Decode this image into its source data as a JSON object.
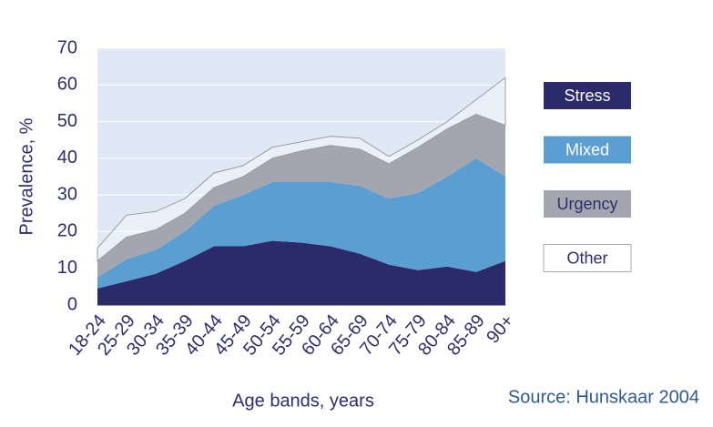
{
  "chart_data": {
    "type": "stacked_area",
    "categories": [
      "18-24",
      "25-29",
      "30-34",
      "35-39",
      "40-44",
      "45-49",
      "50-54",
      "55-59",
      "60-64",
      "65-69",
      "70-74",
      "75-79",
      "80-84",
      "85-89",
      "90+"
    ],
    "series": [
      {
        "name": "Stress",
        "color": "#2b2a6b",
        "values": [
          4.5,
          6.5,
          8.5,
          12,
          16,
          16,
          17.5,
          17,
          16,
          14,
          11,
          9.5,
          10.5,
          9,
          12
        ]
      },
      {
        "name": "Mixed",
        "color": "#5b9ed1",
        "values": [
          3,
          6,
          6.5,
          8,
          11,
          14,
          16,
          16.5,
          17.5,
          18.5,
          18,
          21,
          24.5,
          31,
          23
        ]
      },
      {
        "name": "Urgency",
        "color": "#a3a6ae",
        "values": [
          4.5,
          6,
          5.5,
          5,
          5,
          5,
          6.5,
          8.5,
          10,
          10,
          9.5,
          12.5,
          13,
          12,
          14
        ]
      },
      {
        "name": "Other",
        "color": "#ffffff",
        "values": [
          3.5,
          6,
          5,
          4,
          4,
          3,
          3,
          2.5,
          2.5,
          3,
          2,
          2,
          2,
          4,
          13
        ]
      }
    ],
    "ylim": [
      0,
      70
    ],
    "yticks": [
      0,
      10,
      20,
      30,
      40,
      50,
      60,
      70
    ],
    "grid": true,
    "ylabel": "Prevalence, %",
    "xlabel": "Age bands, years",
    "annotation": "Source: Hunskaar 2004",
    "legend": "right"
  }
}
